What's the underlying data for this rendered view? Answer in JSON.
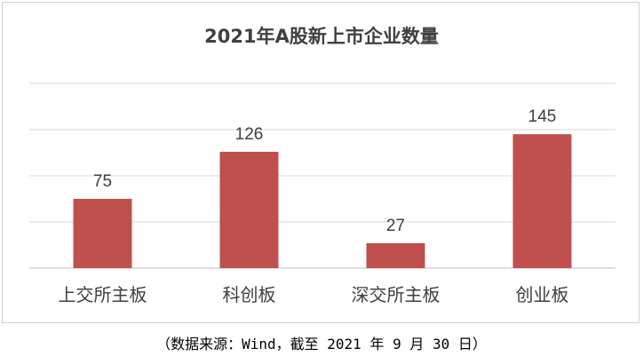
{
  "chart_data": {
    "type": "bar",
    "title": "2021年A股新上市企业数量",
    "categories": [
      "上交所主板",
      "科创板",
      "深交所主板",
      "创业板"
    ],
    "values": [
      75,
      126,
      27,
      145
    ],
    "ylim": [
      0,
      200
    ],
    "ytick_step": 50,
    "grid": true,
    "show_y_tick_labels": false,
    "legend": "none",
    "bar_color": "#c0504d"
  },
  "source_note": "（数据来源：Wind，截至 2021 年 9 月 30 日）"
}
